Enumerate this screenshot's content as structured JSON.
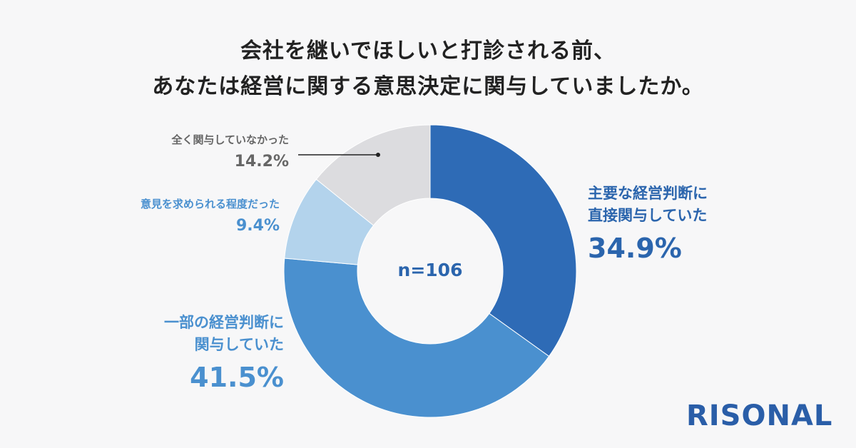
{
  "title": {
    "line1": "会社を継いでほしいと打診される前、",
    "line2": "あなたは経営に関する意思決定に関与していましたか。"
  },
  "chart_data": {
    "type": "pie",
    "donut": true,
    "n_label": "n=106",
    "slices": [
      {
        "label": "主要な経営判断に直接関与していた",
        "label_lines": [
          "主要な経営判断に",
          "直接関与していた"
        ],
        "pct_label": "34.9%",
        "value": 34.9,
        "color": "#2e6bb6",
        "text_color": "#2b65ad"
      },
      {
        "label": "一部の経営判断に関与していた",
        "label_lines": [
          "一部の経営判断に",
          "関与していた"
        ],
        "pct_label": "41.5%",
        "value": 41.5,
        "color": "#4a90cf",
        "text_color": "#4a90cf"
      },
      {
        "label": "意見を求められる程度だった",
        "label_lines": [
          "意見を求められる程度だった"
        ],
        "pct_label": "9.4%",
        "value": 9.4,
        "color": "#b3d3ec",
        "text_color": "#4a90cf"
      },
      {
        "label": "全く関与していなかった",
        "label_lines": [
          "全く関与していなかった"
        ],
        "pct_label": "14.2%",
        "value": 14.2,
        "color": "#dcdcdf",
        "text_color": "#666666"
      }
    ],
    "legend": "none"
  },
  "logo": "RISONAL"
}
